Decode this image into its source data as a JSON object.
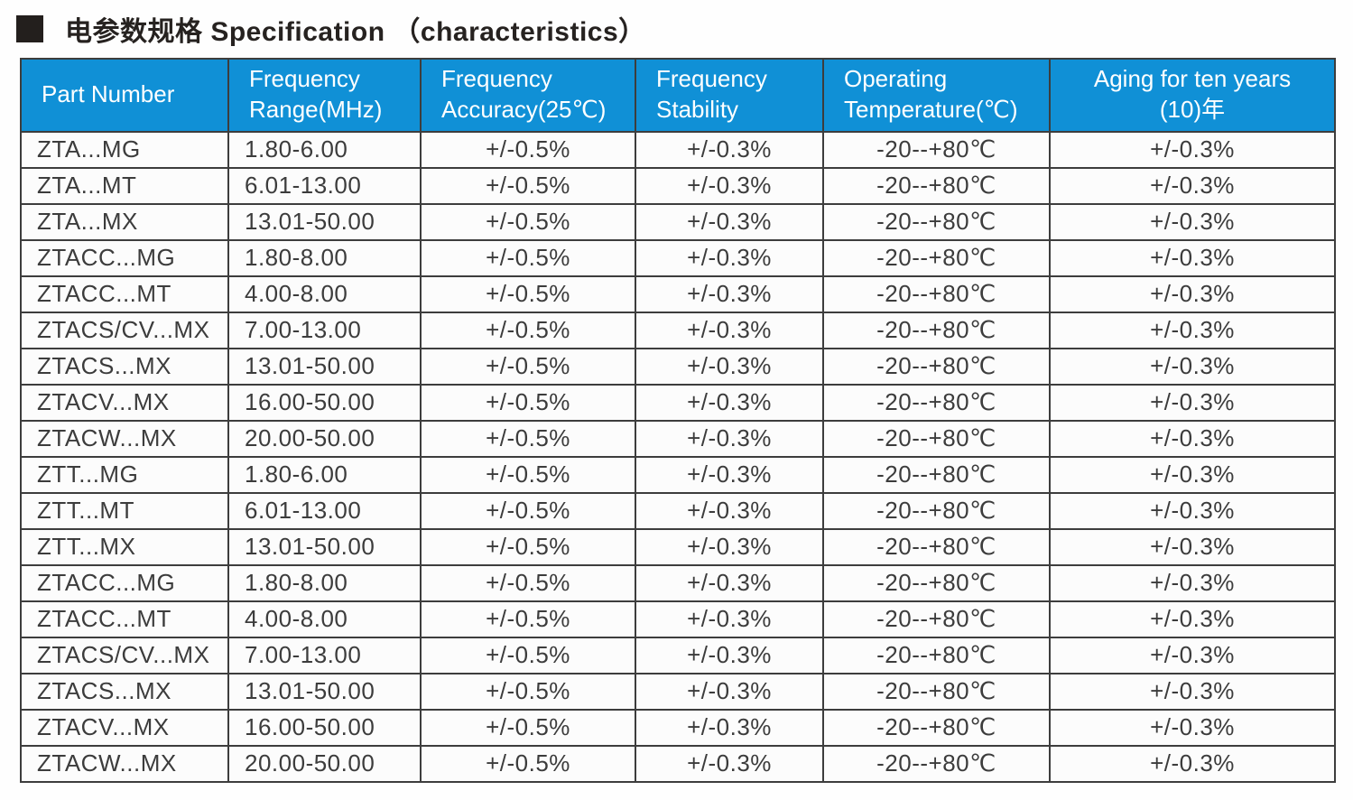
{
  "page": {
    "title": "电参数规格 Specification （characteristics）",
    "title_bullet": "black-square"
  },
  "colors": {
    "header_bg": "#1090d6",
    "header_text": "#ffffff",
    "body_text": "#3c3c3c",
    "border": "#3d3d3d",
    "title_text": "#262220"
  },
  "table": {
    "columns": [
      {
        "key": "part",
        "label": "Part Number"
      },
      {
        "key": "range",
        "label": "Frequency\nRange(MHz)"
      },
      {
        "key": "accuracy",
        "label": "Frequency\nAccuracy(25℃)"
      },
      {
        "key": "stability",
        "label": "Frequency\nStability"
      },
      {
        "key": "temperature",
        "label": "Operating\nTemperature(℃)"
      },
      {
        "key": "aging",
        "label": "Aging for ten years\n(10)年"
      }
    ],
    "rows": [
      {
        "part": "ZTA...MG",
        "range": "1.80-6.00",
        "accuracy": "+/-0.5%",
        "stability": "+/-0.3%",
        "temperature": "-20--+80℃",
        "aging": "+/-0.3%"
      },
      {
        "part": "ZTA...MT",
        "range": "6.01-13.00",
        "accuracy": "+/-0.5%",
        "stability": "+/-0.3%",
        "temperature": "-20--+80℃",
        "aging": "+/-0.3%"
      },
      {
        "part": "ZTA...MX",
        "range": "13.01-50.00",
        "accuracy": "+/-0.5%",
        "stability": "+/-0.3%",
        "temperature": "-20--+80℃",
        "aging": "+/-0.3%"
      },
      {
        "part": "ZTACC...MG",
        "range": "1.80-8.00",
        "accuracy": "+/-0.5%",
        "stability": "+/-0.3%",
        "temperature": "-20--+80℃",
        "aging": "+/-0.3%"
      },
      {
        "part": "ZTACC...MT",
        "range": "4.00-8.00",
        "accuracy": "+/-0.5%",
        "stability": "+/-0.3%",
        "temperature": "-20--+80℃",
        "aging": "+/-0.3%"
      },
      {
        "part": "ZTACS/CV...MX",
        "range": "7.00-13.00",
        "accuracy": "+/-0.5%",
        "stability": "+/-0.3%",
        "temperature": "-20--+80℃",
        "aging": "+/-0.3%"
      },
      {
        "part": "ZTACS...MX",
        "range": "13.01-50.00",
        "accuracy": "+/-0.5%",
        "stability": "+/-0.3%",
        "temperature": "-20--+80℃",
        "aging": "+/-0.3%"
      },
      {
        "part": "ZTACV...MX",
        "range": "16.00-50.00",
        "accuracy": "+/-0.5%",
        "stability": "+/-0.3%",
        "temperature": "-20--+80℃",
        "aging": "+/-0.3%"
      },
      {
        "part": "ZTACW...MX",
        "range": "20.00-50.00",
        "accuracy": "+/-0.5%",
        "stability": "+/-0.3%",
        "temperature": "-20--+80℃",
        "aging": "+/-0.3%"
      },
      {
        "part": "ZTT...MG",
        "range": "1.80-6.00",
        "accuracy": "+/-0.5%",
        "stability": "+/-0.3%",
        "temperature": "-20--+80℃",
        "aging": "+/-0.3%"
      },
      {
        "part": "ZTT...MT",
        "range": "6.01-13.00",
        "accuracy": "+/-0.5%",
        "stability": "+/-0.3%",
        "temperature": "-20--+80℃",
        "aging": "+/-0.3%"
      },
      {
        "part": "ZTT...MX",
        "range": "13.01-50.00",
        "accuracy": "+/-0.5%",
        "stability": "+/-0.3%",
        "temperature": "-20--+80℃",
        "aging": "+/-0.3%"
      },
      {
        "part": "ZTACC...MG",
        "range": "1.80-8.00",
        "accuracy": "+/-0.5%",
        "stability": "+/-0.3%",
        "temperature": "-20--+80℃",
        "aging": "+/-0.3%"
      },
      {
        "part": "ZTACC...MT",
        "range": "4.00-8.00",
        "accuracy": "+/-0.5%",
        "stability": "+/-0.3%",
        "temperature": "-20--+80℃",
        "aging": "+/-0.3%"
      },
      {
        "part": "ZTACS/CV...MX",
        "range": "7.00-13.00",
        "accuracy": "+/-0.5%",
        "stability": "+/-0.3%",
        "temperature": "-20--+80℃",
        "aging": "+/-0.3%"
      },
      {
        "part": "ZTACS...MX",
        "range": "13.01-50.00",
        "accuracy": "+/-0.5%",
        "stability": "+/-0.3%",
        "temperature": "-20--+80℃",
        "aging": "+/-0.3%"
      },
      {
        "part": "ZTACV...MX",
        "range": "16.00-50.00",
        "accuracy": "+/-0.5%",
        "stability": "+/-0.3%",
        "temperature": "-20--+80℃",
        "aging": "+/-0.3%"
      },
      {
        "part": "ZTACW...MX",
        "range": "20.00-50.00",
        "accuracy": "+/-0.5%",
        "stability": "+/-0.3%",
        "temperature": "-20--+80℃",
        "aging": "+/-0.3%"
      }
    ]
  }
}
